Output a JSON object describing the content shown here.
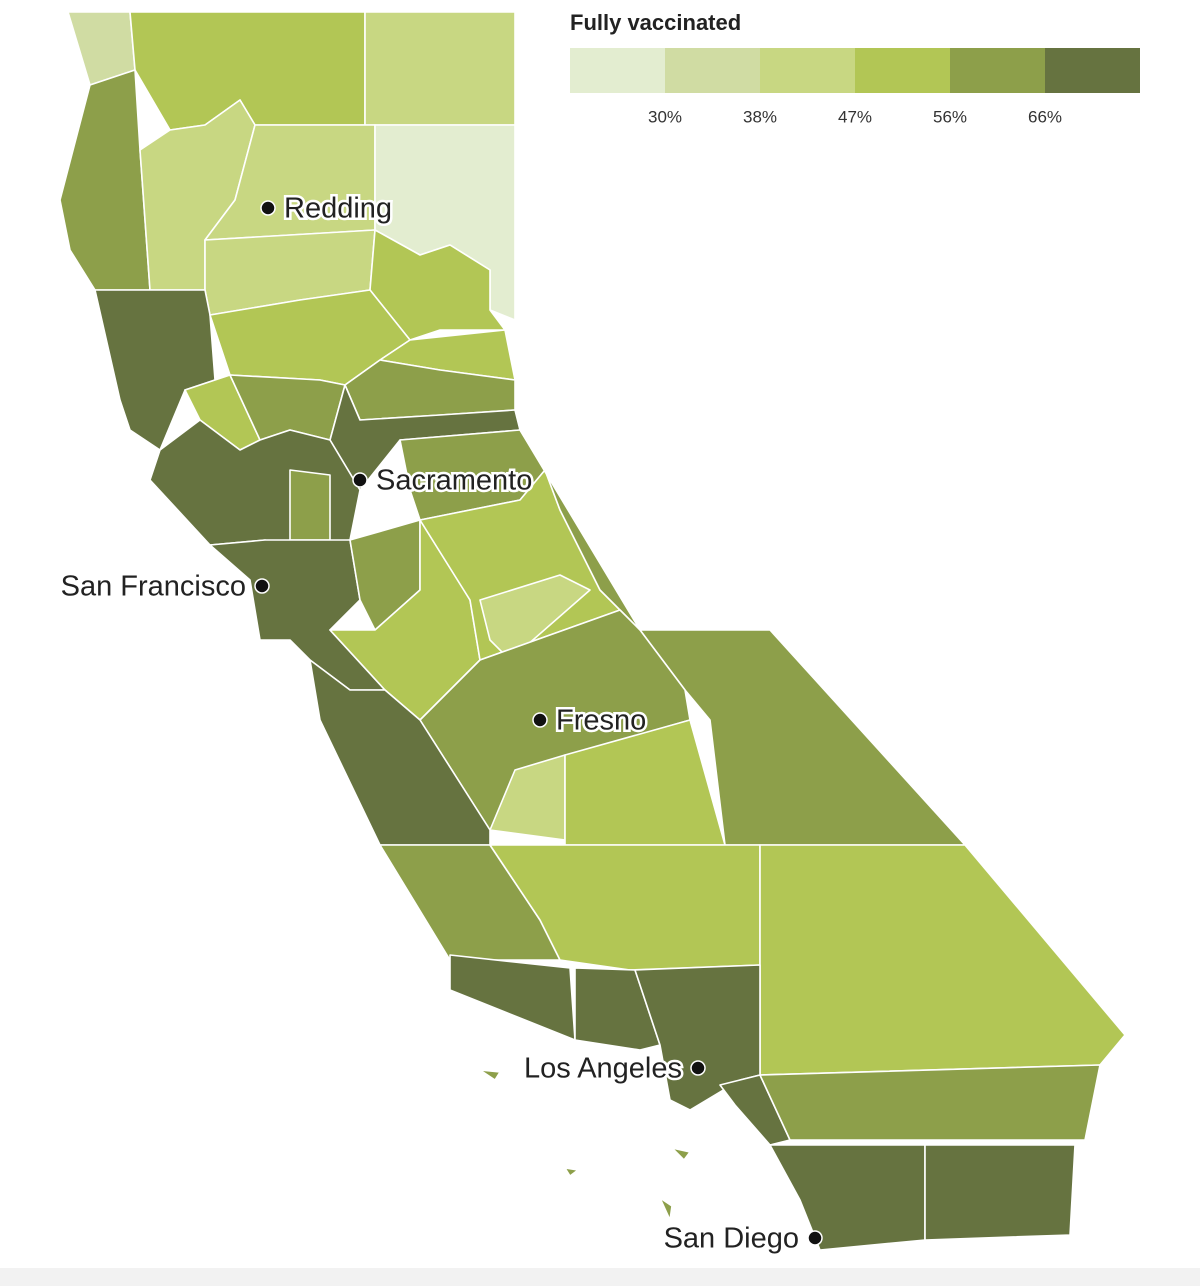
{
  "title": "Fully vaccinated",
  "legend": {
    "colors": [
      "#e3edd0",
      "#d0dca3",
      "#c8d782",
      "#b2c655",
      "#8d9f4a",
      "#667340"
    ],
    "ticks": [
      {
        "value": 30,
        "label": "30%"
      },
      {
        "value": 38,
        "label": "38%"
      },
      {
        "value": 47,
        "label": "47%"
      },
      {
        "value": 56,
        "label": "56%"
      },
      {
        "value": 66,
        "label": "66%"
      }
    ]
  },
  "cities": [
    {
      "name": "Redding"
    },
    {
      "name": "Sacramento"
    },
    {
      "name": "San Francisco"
    },
    {
      "name": "Fresno"
    },
    {
      "name": "Los Angeles"
    },
    {
      "name": "San Diego"
    }
  ]
}
